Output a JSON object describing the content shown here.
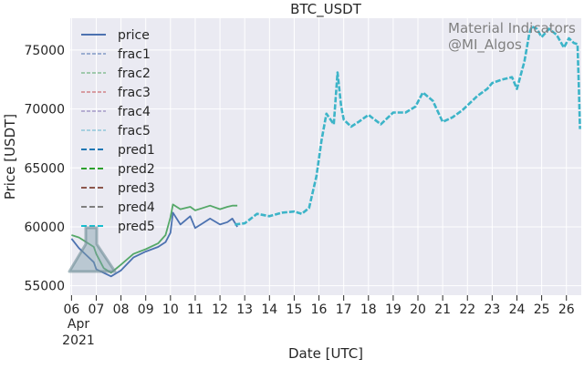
{
  "chart_data": {
    "type": "line",
    "title": "BTC_USDT",
    "xlabel": "Date [UTC]",
    "ylabel": "Price [USDT]",
    "watermark": [
      "Material Indicators",
      "@MI_Algos"
    ],
    "x_tick_labels": [
      "06",
      "07",
      "08",
      "09",
      "10",
      "11",
      "12",
      "13",
      "14",
      "15",
      "16",
      "17",
      "18",
      "19",
      "20",
      "21",
      "22",
      "23",
      "24",
      "25",
      "26"
    ],
    "x_tick_days": [
      6,
      7,
      8,
      9,
      10,
      11,
      12,
      13,
      14,
      15,
      16,
      17,
      18,
      19,
      20,
      21,
      22,
      23,
      24,
      25,
      26
    ],
    "x_start_label": [
      "Apr",
      "2021"
    ],
    "xlim": [
      5.95,
      26.6
    ],
    "y_ticks": [
      55000,
      60000,
      65000,
      70000,
      75000
    ],
    "ylim": [
      54200,
      77700
    ],
    "grid": true,
    "legend_position": "top-left",
    "legend": [
      {
        "name": "price",
        "color": "#4c72b0",
        "style": "solid"
      },
      {
        "name": "frac1",
        "color": "#4c72b0",
        "style": "thin-dash"
      },
      {
        "name": "frac2",
        "color": "#55a868",
        "style": "thin-dash"
      },
      {
        "name": "frac3",
        "color": "#c44e52",
        "style": "thin-dash"
      },
      {
        "name": "frac4",
        "color": "#8172b2",
        "style": "thin-dash"
      },
      {
        "name": "frac5",
        "color": "#64b5cd",
        "style": "thin-dash"
      },
      {
        "name": "pred1",
        "color": "#1f77b4",
        "style": "dash"
      },
      {
        "name": "pred2",
        "color": "#2ca02c",
        "style": "dash"
      },
      {
        "name": "pred3",
        "color": "#8c564b",
        "style": "dash"
      },
      {
        "name": "pred4",
        "color": "#7f7f7f",
        "style": "dash"
      },
      {
        "name": "pred5",
        "color": "#17becf",
        "style": "dash"
      }
    ],
    "series": [
      {
        "name": "price",
        "color": "#4c72b0",
        "x": [
          6.0,
          6.3,
          6.6,
          6.9,
          7.0,
          7.3,
          7.6,
          8.0,
          8.5,
          9.0,
          9.5,
          9.8,
          10.0,
          10.1,
          10.4,
          10.8,
          11.0,
          11.3,
          11.6,
          12.0,
          12.3,
          12.5,
          12.7
        ],
        "y": [
          59000,
          58200,
          57600,
          57000,
          56400,
          56100,
          55800,
          56300,
          57400,
          57900,
          58300,
          58700,
          59500,
          61200,
          60200,
          60900,
          59900,
          60300,
          60700,
          60200,
          60400,
          60700,
          60000
        ]
      },
      {
        "name": "frac",
        "color": "#55a868",
        "x": [
          6.0,
          6.3,
          6.6,
          6.9,
          7.0,
          7.3,
          7.6,
          8.0,
          8.5,
          9.0,
          9.5,
          9.8,
          10.0,
          10.1,
          10.4,
          10.8,
          11.0,
          11.3,
          11.6,
          12.0,
          12.3,
          12.5,
          12.7
        ],
        "y": [
          59300,
          59100,
          58700,
          58300,
          57700,
          56500,
          56100,
          56800,
          57700,
          58100,
          58600,
          59300,
          60800,
          61900,
          61500,
          61700,
          61400,
          61600,
          61800,
          61500,
          61700,
          61800,
          61800
        ]
      },
      {
        "name": "pred",
        "color": "#3cb4c8",
        "x": [
          12.6,
          13.0,
          13.5,
          14.0,
          14.5,
          15.0,
          15.3,
          15.6,
          15.9,
          16.1,
          16.3,
          16.6,
          16.75,
          16.9,
          17.0,
          17.3,
          17.6,
          18.0,
          18.5,
          19.0,
          19.5,
          19.9,
          20.2,
          20.6,
          21.0,
          21.4,
          21.8,
          22.0,
          22.4,
          22.8,
          23.0,
          23.4,
          23.8,
          24.0,
          24.3,
          24.5,
          24.6,
          24.8,
          25.0,
          25.3,
          25.6,
          25.9,
          26.1,
          26.3,
          26.45,
          26.5,
          26.55
        ],
        "y": [
          60200,
          60300,
          61100,
          60900,
          61200,
          61300,
          61100,
          61600,
          64300,
          67300,
          69600,
          68700,
          73100,
          70200,
          69100,
          68500,
          68900,
          69500,
          68700,
          69700,
          69700,
          70200,
          71400,
          70700,
          68900,
          69300,
          69900,
          70300,
          71100,
          71700,
          72200,
          72500,
          72700,
          71700,
          74000,
          76400,
          77000,
          76800,
          76100,
          76800,
          76300,
          75200,
          76000,
          75600,
          75500,
          72000,
          68300
        ]
      }
    ]
  }
}
